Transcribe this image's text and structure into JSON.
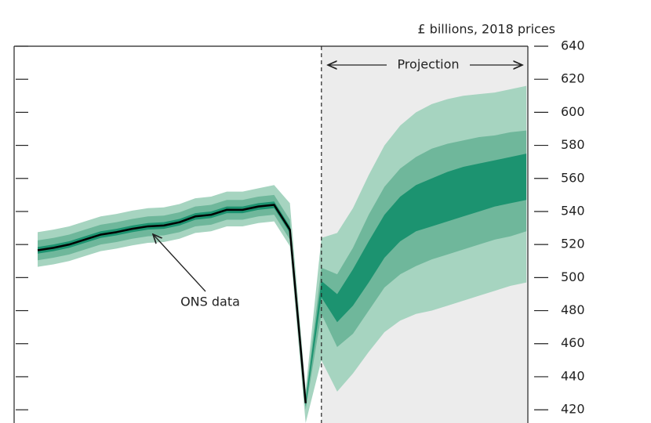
{
  "chart_data": {
    "type": "fan",
    "unit_label": "£ billions, 2018 prices",
    "annotations": {
      "projection": "Projection",
      "ons": "ONS data"
    },
    "ylim": [
      412,
      640
    ],
    "yticks": [
      420,
      440,
      460,
      480,
      500,
      520,
      540,
      560,
      580,
      600,
      620,
      640
    ],
    "projection_start": 18,
    "series": [
      {
        "color": "#000000",
        "values": [
          516.5,
          518,
          520,
          523,
          526,
          527.5,
          529.5,
          531,
          531.5,
          533.5,
          537,
          538,
          541,
          541,
          543,
          544,
          529,
          424,
          null,
          null,
          null,
          null,
          null,
          null,
          null,
          null,
          null,
          null,
          null,
          null,
          null,
          null
        ]
      }
    ],
    "fan": [
      {
        "color": "#a6d4c0",
        "upper": [
          527.5,
          529,
          531,
          534,
          537,
          538.5,
          540.5,
          542,
          542.5,
          544.5,
          548,
          549,
          552,
          552,
          554,
          556,
          545,
          432,
          524,
          527,
          542,
          562,
          580,
          592,
          600,
          605,
          608,
          610,
          611,
          612,
          614,
          616
        ],
        "lower": [
          506.5,
          508,
          510,
          513,
          516,
          517.5,
          519.5,
          521,
          521.5,
          523.5,
          527,
          528,
          531,
          531,
          533,
          534,
          519,
          412,
          450,
          431,
          442,
          455,
          467,
          474,
          478,
          480,
          483,
          486,
          489,
          492,
          495,
          497
        ]
      },
      {
        "color": "#6fb79b",
        "upper": [
          522.5,
          524,
          526,
          529,
          532,
          533.5,
          535.5,
          537,
          537.5,
          539.5,
          543,
          544,
          547,
          547,
          549,
          550,
          535,
          428,
          506,
          502,
          518,
          538,
          555,
          566,
          573,
          578,
          581,
          583,
          585,
          586,
          588,
          589
        ],
        "lower": [
          510.5,
          512,
          514,
          517,
          520,
          521.5,
          523.5,
          525,
          525.5,
          527.5,
          531,
          532,
          535,
          535,
          537,
          538,
          523,
          420,
          478,
          458,
          466,
          480,
          494,
          502,
          507,
          511,
          514,
          517,
          520,
          523,
          525,
          528
        ]
      },
      {
        "color": "#1c9370",
        "upper": [
          518.5,
          520,
          522,
          525,
          528,
          529.5,
          531.5,
          533,
          533.5,
          535.5,
          539,
          540,
          543,
          543,
          545,
          546,
          531,
          426,
          498,
          490,
          505,
          522,
          538,
          549,
          556,
          560,
          564,
          567,
          569,
          571,
          573,
          575
        ],
        "lower": [
          514.5,
          516,
          518,
          521,
          524,
          525.5,
          527.5,
          529,
          529.5,
          531.5,
          535,
          536,
          539,
          539,
          541,
          542,
          527,
          422,
          488,
          473,
          483,
          497,
          512,
          522,
          528,
          531,
          534,
          537,
          540,
          543,
          545,
          547
        ]
      }
    ]
  }
}
